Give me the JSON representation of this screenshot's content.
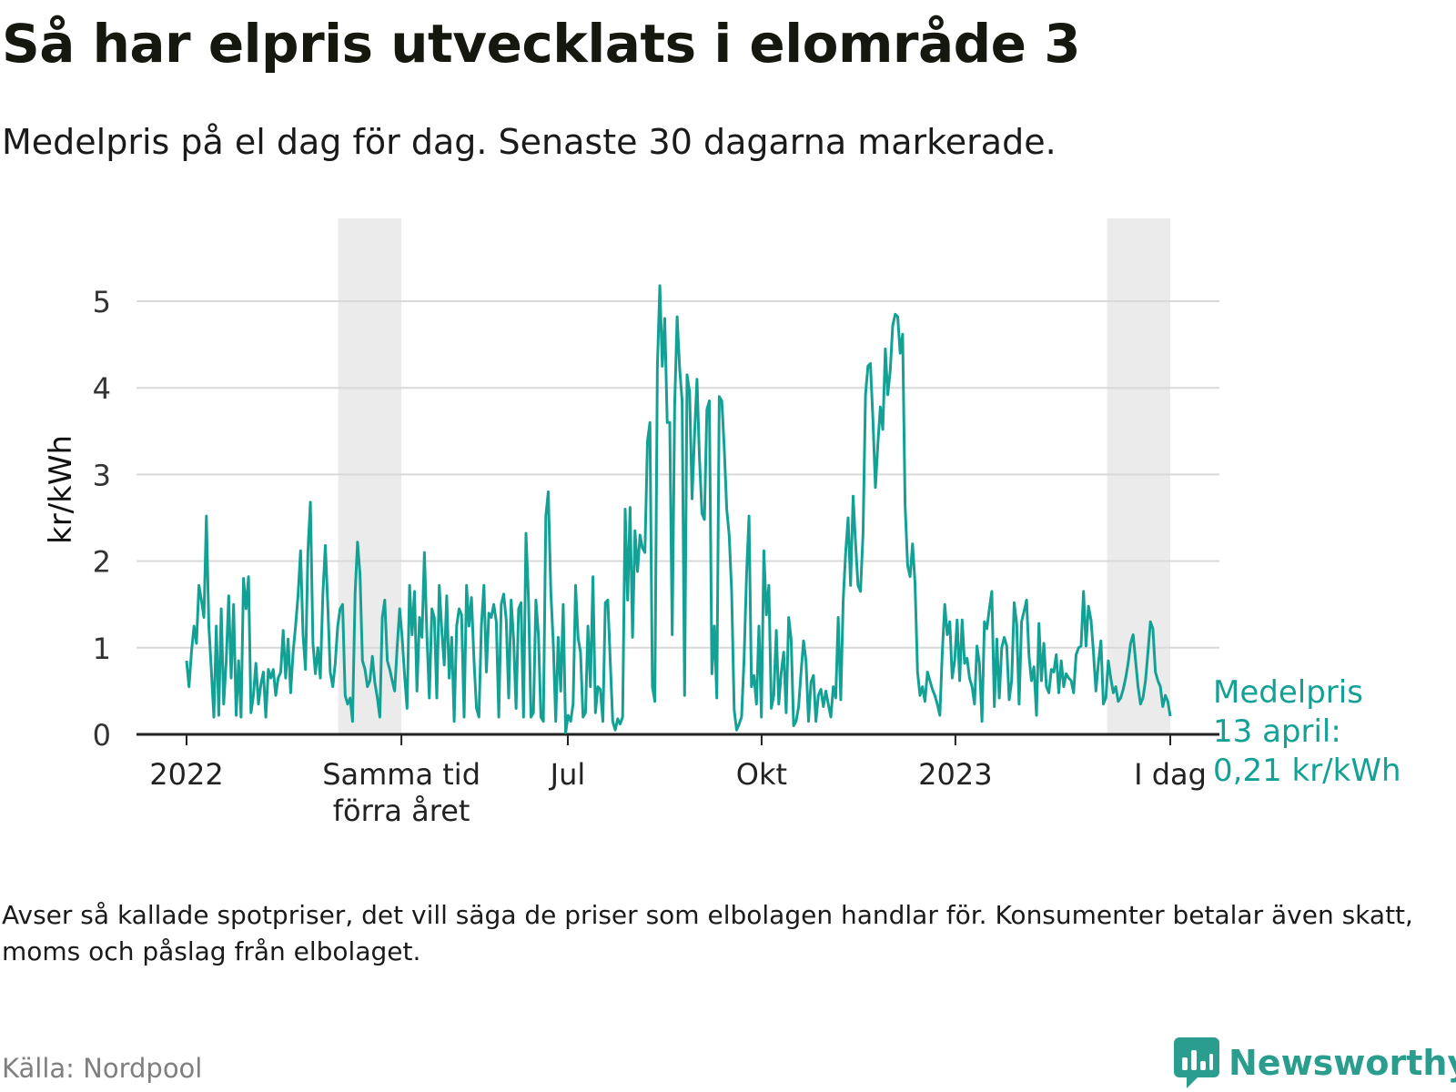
{
  "header": {
    "title": "Så har elpris utvecklats i elområde 3",
    "subtitle": "Medelpris på el dag för dag.  Senaste 30 dagarna markerade."
  },
  "chart_data": {
    "type": "line",
    "ylabel": "kr/kWh",
    "ylim": [
      0,
      5.6
    ],
    "yticks": [
      "0",
      "1",
      "2",
      "3",
      "4",
      "5"
    ],
    "grid": true,
    "line_color": "#14a195",
    "shade_color": "#ebebeb",
    "x_range": [
      "2022-01-01",
      "2023-04-13"
    ],
    "x_ticks": [
      {
        "date": "2022-01-01",
        "label": "2022"
      },
      {
        "date": "2022-04-13",
        "label": "Samma tid\nförra året"
      },
      {
        "date": "2022-07-01",
        "label": "Jul"
      },
      {
        "date": "2022-10-01",
        "label": "Okt"
      },
      {
        "date": "2023-01-01",
        "label": "2023"
      },
      {
        "date": "2023-04-13",
        "label": "I dag"
      }
    ],
    "shaded_periods": [
      {
        "start": "2022-03-14",
        "end": "2022-04-13"
      },
      {
        "start": "2023-03-14",
        "end": "2023-04-13"
      }
    ],
    "annotation": {
      "lines": [
        "Medelpris",
        "13 april:",
        "0,21 kr/kWh"
      ],
      "value": 0.21
    },
    "series": [
      {
        "values": [
          0.85,
          0.55,
          0.95,
          1.25,
          1.05,
          1.72,
          1.55,
          1.35,
          2.52,
          1.25,
          0.75,
          0.2,
          1.25,
          0.22,
          1.45,
          0.35,
          0.85,
          1.6,
          0.65,
          1.5,
          0.22,
          0.85,
          0.2,
          1.8,
          1.45,
          1.82,
          0.25,
          0.45,
          0.82,
          0.35,
          0.58,
          0.72,
          0.2,
          0.75,
          0.65,
          0.75,
          0.45,
          0.65,
          0.72,
          1.2,
          0.65,
          1.1,
          0.48,
          0.95,
          1.25,
          1.6,
          2.12,
          1.15,
          0.75,
          2.12,
          2.68,
          1.05,
          0.7,
          1.0,
          0.65,
          1.62,
          2.18,
          1.5,
          0.72,
          0.55,
          0.82,
          1.25,
          1.45,
          1.5,
          0.45,
          0.35,
          0.42,
          0.15,
          1.62,
          2.22,
          1.85,
          0.85,
          0.75,
          0.55,
          0.62,
          0.9,
          0.6,
          0.42,
          0.2,
          1.35,
          1.55,
          0.85,
          0.75,
          0.62,
          0.5,
          1.0,
          1.45,
          1.12,
          0.68,
          0.3,
          1.72,
          1.15,
          1.65,
          0.5,
          1.35,
          1.12,
          2.1,
          1.15,
          0.42,
          1.45,
          1.35,
          0.42,
          1.72,
          1.2,
          0.8,
          1.6,
          0.65,
          1.12,
          0.15,
          1.25,
          1.45,
          1.38,
          0.2,
          1.72,
          1.25,
          1.58,
          0.85,
          0.3,
          0.2,
          1.25,
          1.72,
          0.72,
          1.4,
          1.35,
          1.5,
          1.3,
          0.2,
          1.5,
          1.62,
          1.32,
          0.42,
          1.55,
          1.1,
          0.3,
          1.45,
          1.52,
          0.2,
          2.32,
          1.55,
          0.2,
          0.25,
          1.55,
          1.15,
          0.2,
          0.15,
          2.52,
          2.8,
          1.65,
          1.05,
          0.15,
          1.12,
          0.5,
          1.5,
          0.02,
          0.22,
          0.15,
          0.35,
          1.72,
          1.12,
          0.95,
          0.2,
          0.25,
          1.25,
          0.55,
          1.82,
          0.25,
          0.55,
          0.52,
          0.15,
          1.52,
          1.55,
          0.85,
          0.15,
          0.05,
          0.18,
          0.12,
          0.2,
          2.6,
          1.55,
          2.62,
          1.12,
          2.35,
          1.88,
          2.3,
          2.15,
          2.1,
          3.38,
          3.6,
          0.55,
          0.38,
          4.25,
          5.18,
          4.25,
          4.8,
          3.6,
          3.6,
          1.15,
          3.8,
          4.82,
          4.22,
          3.85,
          0.45,
          4.15,
          3.95,
          2.72,
          3.45,
          4.1,
          3.2,
          2.55,
          2.48,
          3.75,
          3.85,
          0.7,
          1.25,
          0.42,
          3.9,
          3.85,
          3.3,
          2.6,
          2.3,
          1.65,
          0.28,
          0.05,
          0.12,
          0.2,
          0.88,
          1.85,
          2.52,
          0.55,
          0.68,
          0.35,
          1.25,
          0.2,
          2.12,
          1.38,
          1.72,
          0.3,
          0.45,
          1.2,
          0.35,
          0.72,
          0.95,
          0.25,
          1.35,
          1.1,
          0.1,
          0.15,
          0.32,
          0.72,
          1.08,
          0.85,
          0.15,
          0.6,
          0.68,
          0.15,
          0.45,
          0.52,
          0.32,
          0.5,
          0.35,
          0.2,
          0.55,
          0.42,
          1.35,
          0.4,
          1.55,
          2.1,
          2.5,
          1.72,
          2.75,
          2.2,
          1.72,
          1.65,
          2.32,
          3.92,
          4.25,
          4.28,
          3.65,
          2.85,
          3.35,
          3.78,
          3.52,
          4.45,
          3.92,
          4.2,
          4.72,
          4.85,
          4.82,
          4.4,
          4.62,
          2.65,
          1.95,
          1.82,
          2.2,
          1.75,
          0.72,
          0.45,
          0.55,
          0.38,
          0.72,
          0.62,
          0.52,
          0.45,
          0.35,
          0.22,
          0.95,
          1.5,
          1.15,
          1.3,
          0.65,
          0.85,
          1.32,
          0.62,
          1.32,
          0.82,
          0.88,
          0.65,
          0.55,
          0.35,
          1.02,
          0.82,
          0.15,
          1.3,
          1.22,
          1.45,
          1.65,
          0.32,
          1.1,
          0.42,
          1.0,
          1.12,
          1.02,
          0.4,
          0.62,
          1.52,
          1.28,
          0.35,
          1.3,
          1.42,
          1.55,
          0.9,
          0.62,
          0.78,
          0.22,
          1.28,
          0.62,
          1.05,
          0.55,
          0.48,
          0.75,
          0.72,
          0.92,
          0.48,
          0.85,
          0.55,
          0.7,
          0.65,
          0.62,
          0.48,
          0.92,
          1.0,
          1.02,
          1.65,
          1.02,
          1.48,
          1.32,
          0.95,
          0.5,
          0.82,
          1.08,
          0.35,
          0.42,
          0.85,
          0.65,
          0.48,
          0.55,
          0.38,
          0.42,
          0.52,
          0.65,
          0.82,
          1.05,
          1.15,
          0.85,
          0.55,
          0.35,
          0.42,
          0.62,
          0.95,
          1.3,
          1.22,
          0.72,
          0.62,
          0.55,
          0.32,
          0.45,
          0.38,
          0.21
        ]
      }
    ]
  },
  "footer": {
    "note": "Avser så kallade spotpriser, det vill säga de priser som elbolagen handlar för. Konsumenter betalar även skatt, moms och påslag från elbolaget.",
    "source": "Källa: Nordpool",
    "brand": "Newsworthy",
    "brand_color": "#2a9d8f"
  }
}
